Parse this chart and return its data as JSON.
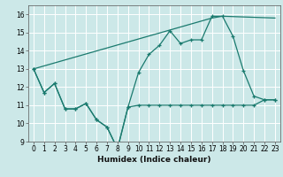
{
  "xlabel": "Humidex (Indice chaleur)",
  "bg_color": "#cce8e8",
  "grid_color": "#ffffff",
  "line_color": "#1a7a6e",
  "xlim": [
    -0.5,
    23.5
  ],
  "ylim": [
    9,
    16.5
  ],
  "xticks": [
    0,
    1,
    2,
    3,
    4,
    5,
    6,
    7,
    8,
    9,
    10,
    11,
    12,
    13,
    14,
    15,
    16,
    17,
    18,
    19,
    20,
    21,
    22,
    23
  ],
  "yticks": [
    9,
    10,
    11,
    12,
    13,
    14,
    15,
    16
  ],
  "line1_x": [
    0,
    1,
    2,
    3,
    4,
    5,
    6,
    7,
    8,
    9,
    10,
    11,
    12,
    13,
    14,
    15,
    16,
    17,
    18,
    19,
    20,
    21,
    22,
    23
  ],
  "line1_y": [
    13.0,
    11.7,
    12.2,
    10.8,
    10.8,
    11.1,
    10.2,
    9.8,
    8.6,
    10.9,
    11.0,
    11.0,
    11.0,
    11.0,
    11.0,
    11.0,
    11.0,
    11.0,
    11.0,
    11.0,
    11.0,
    11.0,
    11.3,
    11.3
  ],
  "line2_x": [
    0,
    1,
    2,
    3,
    4,
    5,
    6,
    7,
    8,
    9,
    10,
    11,
    12,
    13,
    14,
    15,
    16,
    17,
    18,
    19,
    20,
    21,
    22,
    23
  ],
  "line2_y": [
    13.0,
    11.7,
    12.2,
    10.8,
    10.8,
    11.1,
    10.2,
    9.8,
    8.6,
    10.9,
    12.8,
    13.8,
    14.3,
    15.1,
    14.4,
    14.6,
    14.6,
    15.9,
    15.9,
    14.8,
    12.9,
    11.5,
    11.3,
    11.3
  ],
  "line3_x": [
    0,
    17,
    18,
    23
  ],
  "line3_y": [
    13.0,
    15.8,
    15.9,
    15.8
  ],
  "tick_fontsize": 5.5,
  "xlabel_fontsize": 6.5
}
